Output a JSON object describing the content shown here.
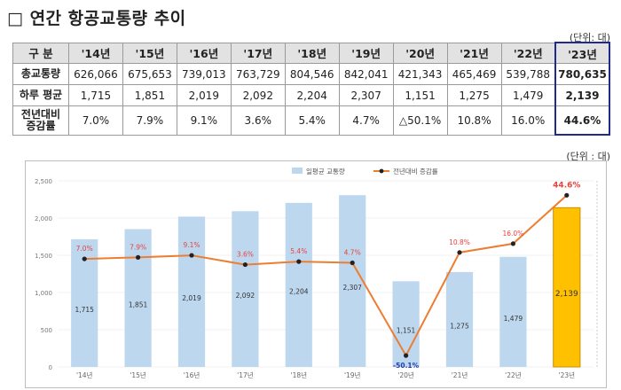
{
  "title": "□ 연간 항공교통량 추이",
  "table": {
    "unit": "(단위: 대)",
    "header": [
      "구 분",
      "'14년",
      "'15년",
      "'16년",
      "'17년",
      "'18년",
      "'19년",
      "'20년",
      "'21년",
      "'22년",
      "'23년"
    ],
    "rows": [
      {
        "label": "총교통량",
        "cells": [
          "626,066",
          "675,653",
          "739,013",
          "763,729",
          "804,546",
          "842,041",
          "421,343",
          "465,469",
          "539,788",
          "780,635"
        ]
      },
      {
        "label": "하루 평균",
        "cells": [
          "1,715",
          "1,851",
          "2,019",
          "2,092",
          "2,204",
          "2,307",
          "1,151",
          "1,275",
          "1,479",
          "2,139"
        ]
      },
      {
        "label": "전년대비\n증감률",
        "cells": [
          "7.0%",
          "7.9%",
          "9.1%",
          "3.6%",
          "5.4%",
          "4.7%",
          "△50.1%",
          "10.8%",
          "16.0%",
          "44.6%"
        ]
      }
    ]
  },
  "chart_unit": "(단위 : 대)",
  "chart_data": {
    "type": "bar",
    "categories": [
      "'14년",
      "'15년",
      "'16년",
      "'17년",
      "'18년",
      "'19년",
      "'20년",
      "'21년",
      "'22년",
      "'23년"
    ],
    "series": [
      {
        "name": "일평균 교통량",
        "type": "bar",
        "axis": "left",
        "values": [
          1715,
          1851,
          2019,
          2092,
          2204,
          2307,
          1151,
          1275,
          1479,
          2139
        ],
        "labels": [
          "1,715",
          "1,851",
          "2,019",
          "2,092",
          "2,204",
          "2,307",
          "1,151",
          "1,275",
          "1,479",
          "2,139"
        ]
      },
      {
        "name": "전년대비 증감률",
        "type": "line",
        "axis": "right",
        "values": [
          7.0,
          7.9,
          9.1,
          3.6,
          5.4,
          4.7,
          -50.1,
          10.8,
          16.0,
          44.6
        ],
        "labels": [
          "7.0%",
          "7.9%",
          "9.1%",
          "3.6%",
          "5.4%",
          "4.7%",
          "-50.1%",
          "10.8%",
          "16.0%",
          "44.6%"
        ]
      }
    ],
    "yticks": [
      "0",
      "500",
      "1,000",
      "1,500",
      "2,000",
      "2,500"
    ],
    "ylim": [
      0,
      2500
    ],
    "legend_position": "top-center",
    "colors": {
      "bar": "#bdd7ee",
      "bar_highlight": "#ffc000",
      "line": "#ed7d31",
      "marker": "#222222",
      "label_red": "#e8433f",
      "label_blue": "#1f3fb0"
    }
  }
}
